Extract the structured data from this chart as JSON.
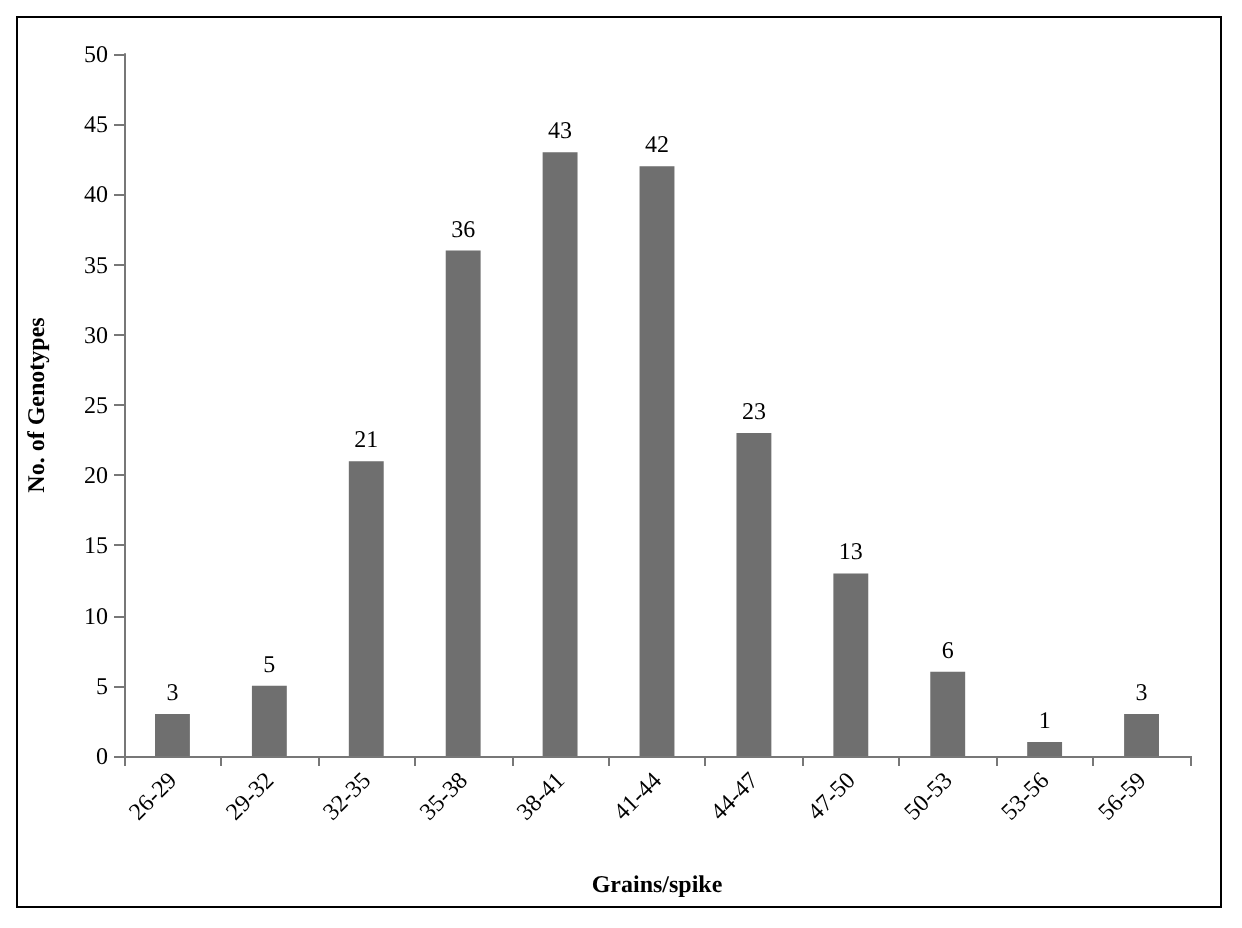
{
  "chart_data": {
    "type": "bar",
    "xlabel": "Grains/spike",
    "ylabel": "No. of Genotypes",
    "categories": [
      "26-29",
      "29-32",
      "32-35",
      "35-38",
      "38-41",
      "41-44",
      "44-47",
      "47-50",
      "50-53",
      "53-56",
      "56-59"
    ],
    "values": [
      3,
      5,
      21,
      36,
      43,
      42,
      23,
      13,
      6,
      1,
      3
    ],
    "color": "#6f6f6f",
    "ylim": [
      0,
      50
    ],
    "yticks": [
      0,
      5,
      10,
      15,
      20,
      25,
      30,
      35,
      40,
      45,
      50
    ],
    "data_labels": true
  }
}
